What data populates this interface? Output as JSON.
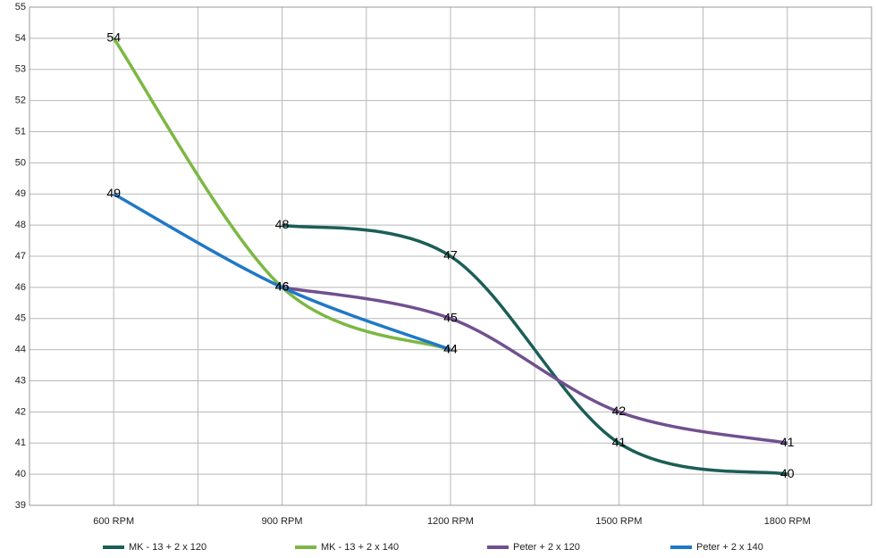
{
  "chart_data": {
    "type": "line",
    "categories": [
      "600 RPM",
      "900 RPM",
      "1200 RPM",
      "1500 RPM",
      "1800 RPM"
    ],
    "series": [
      {
        "name": "MK - 13 + 2 x 120",
        "color": "#1b5e57",
        "values": [
          null,
          48,
          47,
          41,
          40
        ]
      },
      {
        "name": "MK - 13 + 2 x 140",
        "color": "#7cb843",
        "values": [
          54,
          46,
          44,
          null,
          null
        ]
      },
      {
        "name": "Peter + 2 x 120",
        "color": "#71508f",
        "values": [
          null,
          46,
          45,
          42,
          41
        ]
      },
      {
        "name": "Peter + 2 x 140",
        "color": "#1f78c6",
        "values": [
          49,
          46,
          44,
          null,
          null
        ]
      }
    ],
    "ylim": [
      39,
      55
    ],
    "yticks": [
      39,
      40,
      41,
      42,
      43,
      44,
      45,
      46,
      47,
      48,
      49,
      50,
      51,
      52,
      53,
      54,
      55
    ],
    "grid": true,
    "smooth": true,
    "legend": "bottom"
  }
}
